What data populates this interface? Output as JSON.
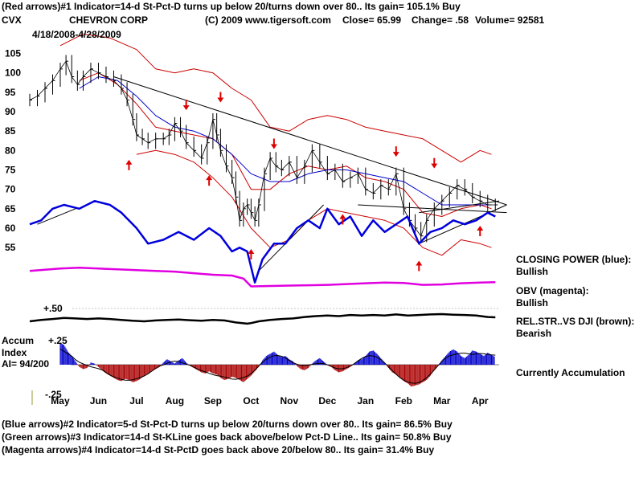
{
  "header": {
    "line1": "(Red arrows)#1 Indicator=14-d St-Pct-D turns up below 20/turns down over 80..  Its gain= 105.1% Buy",
    "ticker": "CVX",
    "company": "CHEVRON CORP",
    "copyright": "(C) 2009 www.tigersoft.com",
    "close": "Close=  65.99",
    "change": "Change= .58",
    "volume": "Volume=  92581",
    "date_range": "4/18/2008-4/28/2009"
  },
  "side_labels": {
    "closing_power_title": "CLOSING POWER (blue):",
    "closing_power_value": "Bullish",
    "obv_title": "OBV (magenta):",
    "obv_value": "Bullish",
    "relstr_title": "REL.STR..VS DJI (brown):",
    "relstr_value": "Bearish",
    "accum_status": "Currently Accumulation"
  },
  "accum_panel": {
    "title_line1": "Accum",
    "title_line2": "Index",
    "ai": "AI= 94/200",
    "top_label": "+.25",
    "bottom_label": "-.25"
  },
  "relstr_panel": {
    "top_label": "+.50"
  },
  "footer": {
    "line1": "(Blue arrows)#2 Indicator=5-d St-Pct-D turns up below 20/turns down over 80..  Its gain= 86.5% Buy",
    "line2": "(Green arrows)#3 Indicator=14-d St-KLine goes back above/below Pct-D Line..  Its gain= 50.8% Buy",
    "line3": "(Magenta arrows)#4 Indicator=14-d St-PctD goes back above 20/below 80..  Its gain= 31.4% Buy"
  },
  "colors": {
    "price": "#000000",
    "closing_power": "#0000dd",
    "obv": "#e000e0",
    "ma_red": "#cc0000",
    "ma_blue": "#0000cc",
    "band": "#cc0000",
    "arrow": "#dd0000",
    "relstr": "#000000",
    "accum_pos": "#0000cc",
    "accum_neg": "#aa0000"
  },
  "chart_data": {
    "type": "line",
    "title": "CHEVRON CORP",
    "y_ticks": [
      105,
      100,
      95,
      90,
      85,
      80,
      75,
      70,
      65,
      60,
      55
    ],
    "ylim": [
      48,
      108
    ],
    "months": [
      "May",
      "Jun",
      "Jul",
      "Aug",
      "Sep",
      "Oct",
      "Nov",
      "Dec",
      "Jan",
      "Feb",
      "Mar",
      "Apr"
    ],
    "x_months": [
      0,
      1,
      2,
      3,
      4,
      5,
      6,
      7,
      8,
      9,
      10,
      11
    ],
    "xlim": [
      -0.8,
      11.5
    ],
    "price": {
      "x": [
        -0.8,
        -0.6,
        -0.4,
        -0.2,
        0,
        0.15,
        0.3,
        0.45,
        0.6,
        0.8,
        1,
        1.2,
        1.4,
        1.6,
        1.75,
        1.9,
        2,
        2.15,
        2.3,
        2.5,
        2.7,
        2.85,
        3,
        3.15,
        3.3,
        3.5,
        3.7,
        3.85,
        4,
        4.1,
        4.2,
        4.35,
        4.5,
        4.6,
        4.7,
        4.8,
        4.9,
        5,
        5.1,
        5.2,
        5.35,
        5.5,
        5.65,
        5.8,
        6,
        6.2,
        6.4,
        6.6,
        6.8,
        7,
        7.2,
        7.4,
        7.6,
        7.8,
        8,
        8.2,
        8.4,
        8.6,
        8.8,
        9,
        9.15,
        9.3,
        9.45,
        9.6,
        9.8,
        10,
        10.2,
        10.4,
        10.6,
        10.8,
        11,
        11.2,
        11.4
      ],
      "y": [
        93,
        94,
        96,
        98,
        101,
        103,
        99,
        97,
        99,
        101,
        100,
        99,
        98,
        96,
        93,
        88,
        84,
        83,
        82,
        83,
        83,
        84,
        87,
        85,
        82,
        80,
        78,
        82,
        88,
        84,
        80,
        76,
        73,
        68,
        62,
        65,
        66,
        64,
        62,
        66,
        74,
        78,
        76,
        75,
        77,
        73,
        76,
        80,
        77,
        74,
        75,
        72,
        73,
        74,
        70,
        69,
        71,
        70,
        74,
        65,
        62,
        60,
        58,
        62,
        65,
        67,
        69,
        71,
        70,
        68,
        67,
        66,
        66
      ]
    },
    "ma_blue": {
      "x": [
        0.5,
        1,
        1.5,
        2,
        2.5,
        3,
        3.5,
        4,
        4.5,
        5,
        5.5,
        6,
        6.5,
        7,
        7.5,
        8,
        8.5,
        9,
        9.5,
        10,
        10.5,
        11,
        11.3
      ],
      "y": [
        96,
        99,
        98,
        94,
        89,
        86,
        85,
        83,
        79,
        74,
        72,
        72,
        74,
        75,
        75,
        74,
        73,
        72,
        69,
        66,
        66,
        66,
        66
      ]
    },
    "ma_red": {
      "x": [
        0.5,
        1,
        1.5,
        2,
        2.5,
        3,
        3.5,
        4,
        4.5,
        5,
        5.5,
        6,
        6.5,
        7,
        7.5,
        8,
        8.5,
        9,
        9.5,
        10,
        10.5,
        11,
        11.3
      ],
      "y": [
        98,
        100,
        97,
        92,
        86,
        85,
        84,
        83,
        79,
        70,
        70,
        74,
        76,
        75,
        76,
        73,
        72,
        70,
        64,
        63,
        65,
        66,
        65
      ]
    },
    "band_upper": {
      "x": [
        0,
        0.6,
        1.3,
        2,
        2.5,
        3,
        3.5,
        4,
        4.5,
        5,
        5.5,
        6,
        6.5,
        7,
        7.5,
        8,
        8.5,
        9,
        9.5,
        10,
        10.5,
        11,
        11.3
      ],
      "y": [
        107,
        110,
        109,
        106,
        101,
        100,
        101,
        100,
        96,
        93,
        86,
        85,
        88,
        89,
        88,
        86,
        85,
        84,
        83,
        80,
        77,
        80,
        79
      ]
    },
    "band_lower": {
      "x": [
        2,
        2.5,
        3,
        3.5,
        4,
        4.5,
        5,
        5.5,
        6,
        6.5,
        7,
        7.5,
        8,
        8.5,
        9,
        9.5,
        10,
        10.5,
        11,
        11.3
      ],
      "y": [
        79,
        80,
        79,
        77,
        73,
        68,
        60,
        55,
        57,
        62,
        65,
        64,
        63,
        62,
        60,
        55,
        53,
        57,
        56,
        55
      ]
    },
    "trendlines": [
      {
        "x": [
          1.4,
          11.7
        ],
        "y": [
          99,
          66
        ]
      },
      {
        "x": [
          7.8,
          11.7
        ],
        "y": [
          66,
          64
        ]
      },
      {
        "x": [
          9.4,
          11.7
        ],
        "y": [
          56,
          66
        ]
      },
      {
        "x": [
          9.4,
          11.5
        ],
        "y": [
          64,
          67
        ]
      },
      {
        "x": [
          5.2,
          6.9
        ],
        "y": [
          49,
          66
        ]
      },
      {
        "x": [
          -0.6,
          0.4
        ],
        "y": [
          61,
          65
        ]
      }
    ],
    "arrows_down": [
      {
        "x": 3.3,
        "y": 91
      },
      {
        "x": 4.2,
        "y": 93
      },
      {
        "x": 5.6,
        "y": 81
      },
      {
        "x": 8.8,
        "y": 79
      },
      {
        "x": 9.8,
        "y": 76
      }
    ],
    "arrows_up": [
      {
        "x": 1.8,
        "y": 77
      },
      {
        "x": 3.9,
        "y": 73
      },
      {
        "x": 5.0,
        "y": 54
      },
      {
        "x": 7.4,
        "y": 63
      },
      {
        "x": 9.4,
        "y": 51
      },
      {
        "x": 11.0,
        "y": 60
      }
    ],
    "closing_power": {
      "x": [
        -0.8,
        -0.5,
        -0.2,
        0.1,
        0.5,
        0.9,
        1.3,
        1.6,
        2,
        2.3,
        2.7,
        3.1,
        3.5,
        3.9,
        4.2,
        4.5,
        4.7,
        4.9,
        5.1,
        5.3,
        5.6,
        5.9,
        6.2,
        6.5,
        6.8,
        7,
        7.3,
        7.6,
        7.9,
        8.2,
        8.5,
        8.8,
        9.1,
        9.4,
        9.7,
        10,
        10.3,
        10.6,
        10.9,
        11.2,
        11.4
      ],
      "y": [
        61,
        62,
        65,
        66,
        65,
        67,
        66,
        64,
        60,
        56,
        57,
        59,
        57,
        60,
        58,
        54,
        55,
        54,
        46,
        52,
        56,
        56,
        60,
        62,
        60,
        65,
        61,
        63,
        58,
        62,
        59,
        61,
        63,
        56,
        59,
        60,
        62,
        61,
        62,
        64,
        63
      ]
    },
    "obv": {
      "x": [
        -0.8,
        0,
        0.5,
        1,
        1.5,
        2,
        2.5,
        3,
        3.5,
        4,
        4.5,
        4.8,
        5,
        5.5,
        6,
        6.5,
        7,
        7.5,
        8,
        8.5,
        9,
        9.5,
        10,
        10.5,
        11,
        11.4
      ],
      "y": [
        49,
        49.6,
        49.8,
        49.6,
        49.4,
        49.2,
        49,
        48.8,
        48.4,
        48,
        47.8,
        47,
        45,
        45.1,
        45.2,
        45.3,
        45.4,
        45.6,
        45.8,
        46,
        45.9,
        45.4,
        45.5,
        45.8,
        46,
        46.1
      ]
    },
    "accum_index": {
      "ylim": [
        -0.25,
        0.25
      ],
      "x": [
        0,
        0.1,
        0.2,
        0.3,
        0.4,
        0.5,
        0.6,
        0.7,
        0.8,
        0.9,
        1,
        1.1,
        1.2,
        1.3,
        1.4,
        1.5,
        1.6,
        1.7,
        1.8,
        1.9,
        2,
        2.1,
        2.2,
        2.3,
        2.4,
        2.5,
        2.6,
        2.7,
        2.8,
        2.9,
        3,
        3.1,
        3.2,
        3.3,
        3.4,
        3.5,
        3.6,
        3.7,
        3.8,
        3.9,
        4,
        4.1,
        4.2,
        4.3,
        4.4,
        4.5,
        4.6,
        4.7,
        4.8,
        4.9,
        5,
        5.1,
        5.2,
        5.3,
        5.4,
        5.5,
        5.6,
        5.7,
        5.8,
        5.9,
        6,
        6.1,
        6.2,
        6.3,
        6.4,
        6.5,
        6.6,
        6.7,
        6.8,
        6.9,
        7,
        7.1,
        7.2,
        7.3,
        7.4,
        7.5,
        7.6,
        7.7,
        7.8,
        7.9,
        8,
        8.1,
        8.2,
        8.3,
        8.4,
        8.5,
        8.6,
        8.7,
        8.8,
        8.9,
        9,
        9.1,
        9.2,
        9.3,
        9.4,
        9.5,
        9.6,
        9.7,
        9.8,
        9.9,
        10,
        10.1,
        10.2,
        10.3,
        10.4,
        10.5,
        10.6,
        10.7,
        10.8,
        10.9,
        11,
        11.1,
        11.2,
        11.3,
        11.4
      ],
      "values": [
        0.2,
        0.18,
        0.12,
        0.08,
        0.03,
        -0.02,
        -0.04,
        -0.03,
        0.02,
        0.01,
        -0.02,
        -0.05,
        -0.08,
        -0.1,
        -0.12,
        -0.14,
        -0.15,
        -0.13,
        -0.14,
        -0.16,
        -0.15,
        -0.13,
        -0.1,
        -0.08,
        -0.06,
        -0.04,
        -0.02,
        0.02,
        0.05,
        0.03,
        0.01,
        0.04,
        0.06,
        0.02,
        -0.01,
        -0.03,
        -0.05,
        -0.07,
        -0.08,
        -0.06,
        -0.08,
        -0.09,
        -0.12,
        -0.14,
        -0.13,
        -0.11,
        -0.12,
        -0.14,
        -0.16,
        -0.13,
        -0.1,
        -0.06,
        -0.02,
        0.04,
        0.08,
        0.1,
        0.12,
        0.09,
        0.07,
        0.08,
        0.05,
        0.03,
        -0.01,
        -0.04,
        -0.05,
        -0.03,
        0.01,
        0.04,
        0.06,
        0.03,
        0.0,
        -0.02,
        -0.05,
        -0.07,
        -0.06,
        -0.04,
        -0.02,
        0.01,
        0.04,
        0.05,
        0.08,
        0.12,
        0.13,
        0.1,
        0.06,
        0.02,
        -0.03,
        -0.07,
        -0.09,
        -0.12,
        -0.15,
        -0.17,
        -0.2,
        -0.19,
        -0.18,
        -0.16,
        -0.14,
        -0.1,
        -0.05,
        -0.01,
        0.04,
        0.08,
        0.12,
        0.14,
        0.12,
        0.08,
        0.06,
        0.09,
        0.13,
        0.12,
        0.1,
        0.08,
        0.11,
        0.09,
        0.07
      ]
    },
    "rel_str": {
      "x": [
        -0.8,
        -0.5,
        -0.2,
        0.1,
        0.4,
        0.7,
        1,
        1.3,
        1.6,
        1.9,
        2.2,
        2.5,
        2.8,
        3.1,
        3.4,
        3.7,
        4,
        4.3,
        4.6,
        4.9,
        5,
        5.2,
        5.5,
        5.8,
        6.1,
        6.4,
        6.7,
        7,
        7.3,
        7.6,
        7.9,
        8.2,
        8.5,
        8.8,
        9.1,
        9.4,
        9.7,
        10,
        10.3,
        10.6,
        10.9,
        11.2,
        11.4
      ],
      "y": [
        0.0,
        0.05,
        0.08,
        0.12,
        0.1,
        0.08,
        0.1,
        0.08,
        0.05,
        0.02,
        0.0,
        0.03,
        0.05,
        0.06,
        0.04,
        0.02,
        0.05,
        0.03,
        -0.04,
        -0.08,
        -0.06,
        0.0,
        0.05,
        0.08,
        0.1,
        0.15,
        0.18,
        0.2,
        0.18,
        0.22,
        0.2,
        0.22,
        0.2,
        0.24,
        0.2,
        0.22,
        0.24,
        0.25,
        0.23,
        0.22,
        0.2,
        0.15,
        0.14
      ]
    }
  }
}
